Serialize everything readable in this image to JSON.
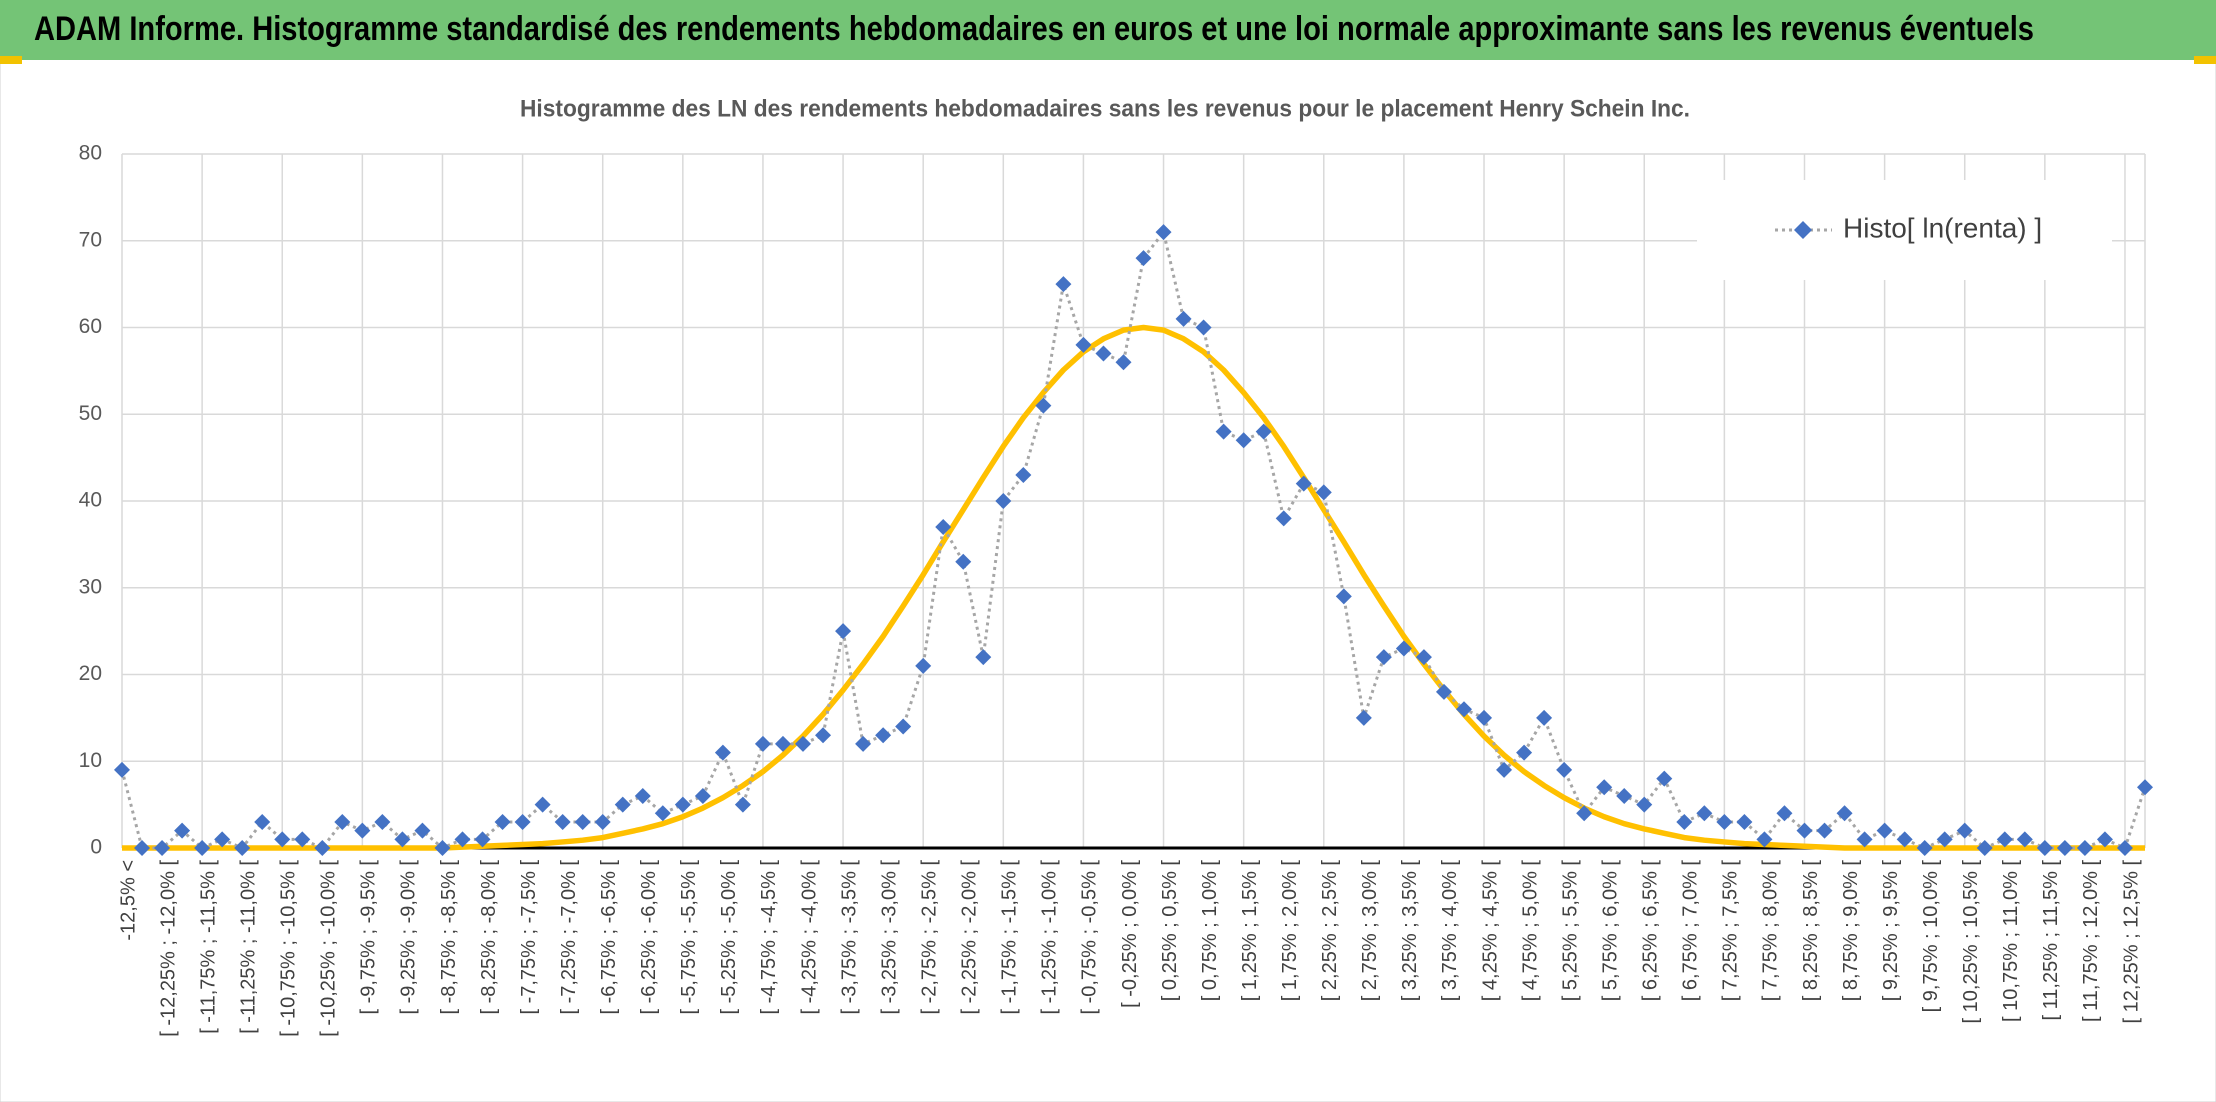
{
  "header": {
    "title": "ADAM Informe. Histogramme standardisé des rendements hebdomadaires en euros et une loi normale approximante sans les revenus éventuels"
  },
  "chart_data": {
    "type": "line",
    "title": "Histogramme des LN des rendements hebdomadaires sans les revenus pour le placement Henry Schein Inc.",
    "categories": [
      "-12,5% <",
      null,
      "[ -12,25% ; -12,0% [",
      null,
      "[ -11,75% ; -11,5% [",
      null,
      "[ -11,25% ; -11,0% [",
      null,
      "[ -10,75% ; -10,5% [",
      null,
      "[ -10,25% ; -10,0% [",
      null,
      "[ -9,75% ; -9,5% [",
      null,
      "[ -9,25% ; -9,0% [",
      null,
      "[ -8,75% ; -8,5% [",
      null,
      "[ -8,25% ; -8,0% [",
      null,
      "[ -7,75% ; -7,5% [",
      null,
      "[ -7,25% ; -7,0% [",
      null,
      "[ -6,75% ; -6,5% [",
      null,
      "[ -6,25% ; -6,0% [",
      null,
      "[ -5,75% ; -5,5% [",
      null,
      "[ -5,25% ; -5,0% [",
      null,
      "[ -4,75% ; -4,5% [",
      null,
      "[ -4,25% ; -4,0% [",
      null,
      "[ -3,75% ; -3,5% [",
      null,
      "[ -3,25% ; -3,0% [",
      null,
      "[ -2,75% ; -2,5% [",
      null,
      "[ -2,25% ; -2,0% [",
      null,
      "[ -1,75% ; -1,5% [",
      null,
      "[ -1,25% ; -1,0% [",
      null,
      "[ -0,75% ; -0,5% [",
      null,
      "[ -0,25% ; 0,0% [",
      null,
      "[ 0,25% ; 0,5% [",
      null,
      "[ 0,75% ; 1,0% [",
      null,
      "[ 1,25% ; 1,5% [",
      null,
      "[ 1,75% ; 2,0% [",
      null,
      "[ 2,25% ; 2,5% [",
      null,
      "[ 2,75% ; 3,0% [",
      null,
      "[ 3,25% ; 3,5% [",
      null,
      "[ 3,75% ; 4,0% [",
      null,
      "[ 4,25% ; 4,5% [",
      null,
      "[ 4,75% ; 5,0% [",
      null,
      "[ 5,25% ; 5,5% [",
      null,
      "[ 5,75% ; 6,0% [",
      null,
      "[ 6,25% ; 6,5% [",
      null,
      "[ 6,75% ; 7,0% [",
      null,
      "[ 7,25% ; 7,5% [",
      null,
      "[ 7,75% ; 8,0% [",
      null,
      "[ 8,25% ; 8,5% [",
      null,
      "[ 8,75% ; 9,0% [",
      null,
      "[ 9,25% ; 9,5% [",
      null,
      "[ 9,75% ; 10,0% [",
      null,
      "[ 10,25% ; 10,5% [",
      null,
      "[ 10,75% ; 11,0% [",
      null,
      "[ 11,25% ; 11,5% [",
      null,
      "[ 11,75% ; 12,0% [",
      null,
      "[ 12,25% ; 12,5% [",
      null
    ],
    "series": [
      {
        "name": "Histo[ ln(renta) ]",
        "color": "#4472c4",
        "line_color": "#a6a6a6",
        "markers": true,
        "values": [
          9,
          0,
          0,
          2,
          0,
          1,
          0,
          3,
          1,
          1,
          0,
          3,
          2,
          3,
          1,
          2,
          0,
          1,
          1,
          3,
          3,
          5,
          3,
          3,
          3,
          5,
          6,
          4,
          5,
          6,
          11,
          5,
          12,
          12,
          12,
          13,
          25,
          12,
          13,
          14,
          21,
          37,
          33,
          22,
          40,
          43,
          51,
          65,
          58,
          57,
          56,
          68,
          71,
          61,
          60,
          48,
          47,
          48,
          38,
          42,
          41,
          29,
          15,
          22,
          23,
          22,
          18,
          16,
          15,
          9,
          11,
          15,
          9,
          4,
          7,
          6,
          5,
          8,
          3,
          4,
          3,
          3,
          1,
          4,
          2,
          2,
          4,
          1,
          2,
          1,
          0,
          1,
          2,
          0,
          1,
          1,
          0,
          0,
          0,
          1,
          0,
          7
        ]
      },
      {
        "color": "#ffc000",
        "line_color": "#ffc000",
        "markers": false,
        "values": [
          0,
          0,
          0,
          0,
          0,
          0,
          0,
          0,
          0,
          0,
          0,
          0,
          0,
          0,
          0,
          0,
          0,
          0.1,
          0.2,
          0.3,
          0.4,
          0.5,
          0.7,
          0.9,
          1.2,
          1.7,
          2.2,
          2.8,
          3.6,
          4.6,
          5.8,
          7.2,
          8.8,
          10.7,
          12.9,
          15.4,
          18.2,
          21.2,
          24.4,
          27.9,
          31.5,
          35.3,
          39.0,
          42.7,
          46.3,
          49.6,
          52.5,
          55.1,
          57.2,
          58.7,
          59.7,
          60,
          59.7,
          58.7,
          57.2,
          55.1,
          52.5,
          49.6,
          46.3,
          42.7,
          39.0,
          35.3,
          31.5,
          27.9,
          24.4,
          21.2,
          18.2,
          15.4,
          12.9,
          10.7,
          8.8,
          7.2,
          5.8,
          4.6,
          3.6,
          2.8,
          2.2,
          1.7,
          1.2,
          0.9,
          0.7,
          0.5,
          0.4,
          0.3,
          0.2,
          0.1,
          0,
          0,
          0,
          0,
          0,
          0,
          0,
          0,
          0,
          0,
          0,
          0,
          0,
          0,
          0,
          0
        ]
      }
    ],
    "ylim": [
      0,
      80
    ],
    "yticks": [
      0,
      10,
      20,
      30,
      40,
      50,
      60,
      70,
      80
    ],
    "grid": true,
    "legend": "upper right"
  }
}
